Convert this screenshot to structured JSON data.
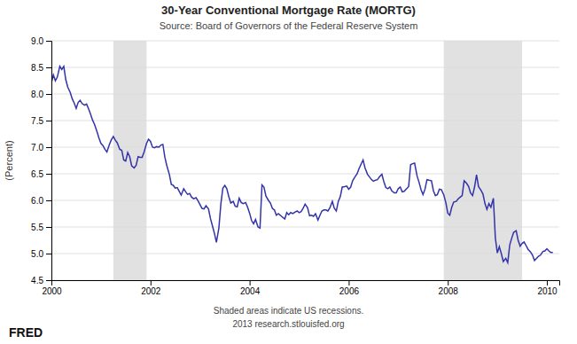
{
  "chart_data": {
    "type": "line",
    "title": "30-Year Conventional Mortgage Rate (MORTG)",
    "subtitle": "Source:  Board of Governors of the Federal Reserve System",
    "ylabel": "(Percent)",
    "annotations": [
      "Shaded areas indicate US recessions.",
      "2013 research.stlouisfed.org",
      "FRED"
    ],
    "color": "#3333aa",
    "grid": true,
    "xlim": [
      2000.0,
      2010.25
    ],
    "xticks": [
      2000,
      2002,
      2004,
      2006,
      2008,
      2010
    ],
    "ylim": [
      4.5,
      9.0
    ],
    "yticks": [
      4.5,
      {
        "value": 5.0,
        "label": "5.0"
      },
      5.5,
      {
        "value": 6.0,
        "label": "6.0"
      },
      6.5,
      {
        "value": 7.0,
        "label": "7.0"
      },
      7.5,
      {
        "value": 8.0,
        "label": "8.0"
      },
      8.5,
      {
        "value": 9.0,
        "label": "9.0"
      }
    ],
    "recession_bands": [
      [
        2001.25,
        2001.92
      ],
      [
        2007.92,
        2009.5
      ]
    ],
    "x": [
      2000.0,
      2000.04,
      2000.08,
      2000.12,
      2000.17,
      2000.21,
      2000.25,
      2000.29,
      2000.33,
      2000.38,
      2000.42,
      2000.46,
      2000.5,
      2000.54,
      2000.58,
      2000.62,
      2000.67,
      2000.71,
      2000.75,
      2000.79,
      2000.83,
      2000.87,
      2000.92,
      2000.96,
      2001.0,
      2001.04,
      2001.08,
      2001.12,
      2001.17,
      2001.21,
      2001.25,
      2001.29,
      2001.33,
      2001.38,
      2001.42,
      2001.46,
      2001.5,
      2001.54,
      2001.58,
      2001.62,
      2001.67,
      2001.71,
      2001.75,
      2001.79,
      2001.83,
      2001.87,
      2001.92,
      2001.96,
      2002.0,
      2002.04,
      2002.08,
      2002.12,
      2002.17,
      2002.21,
      2002.25,
      2002.29,
      2002.33,
      2002.38,
      2002.42,
      2002.46,
      2002.5,
      2002.54,
      2002.58,
      2002.62,
      2002.67,
      2002.71,
      2002.75,
      2002.79,
      2002.83,
      2002.87,
      2002.92,
      2002.96,
      2003.0,
      2003.04,
      2003.08,
      2003.12,
      2003.17,
      2003.21,
      2003.25,
      2003.29,
      2003.33,
      2003.38,
      2003.42,
      2003.46,
      2003.5,
      2003.54,
      2003.58,
      2003.62,
      2003.67,
      2003.71,
      2003.75,
      2003.79,
      2003.83,
      2003.87,
      2003.92,
      2003.96,
      2004.0,
      2004.04,
      2004.08,
      2004.12,
      2004.17,
      2004.21,
      2004.25,
      2004.29,
      2004.33,
      2004.38,
      2004.42,
      2004.46,
      2004.5,
      2004.54,
      2004.58,
      2004.62,
      2004.67,
      2004.71,
      2004.75,
      2004.79,
      2004.83,
      2004.87,
      2004.92,
      2004.96,
      2005.0,
      2005.04,
      2005.08,
      2005.12,
      2005.17,
      2005.21,
      2005.25,
      2005.29,
      2005.33,
      2005.38,
      2005.42,
      2005.46,
      2005.5,
      2005.54,
      2005.58,
      2005.62,
      2005.67,
      2005.71,
      2005.75,
      2005.79,
      2005.83,
      2005.87,
      2005.92,
      2005.96,
      2006.0,
      2006.04,
      2006.08,
      2006.12,
      2006.17,
      2006.21,
      2006.25,
      2006.29,
      2006.33,
      2006.38,
      2006.42,
      2006.46,
      2006.5,
      2006.54,
      2006.58,
      2006.62,
      2006.67,
      2006.71,
      2006.75,
      2006.79,
      2006.83,
      2006.87,
      2006.92,
      2006.96,
      2007.0,
      2007.04,
      2007.08,
      2007.12,
      2007.17,
      2007.21,
      2007.25,
      2007.29,
      2007.33,
      2007.38,
      2007.42,
      2007.46,
      2007.5,
      2007.54,
      2007.58,
      2007.62,
      2007.67,
      2007.71,
      2007.75,
      2007.79,
      2007.83,
      2007.87,
      2007.92,
      2007.96,
      2008.0,
      2008.04,
      2008.08,
      2008.12,
      2008.17,
      2008.21,
      2008.25,
      2008.29,
      2008.33,
      2008.38,
      2008.42,
      2008.46,
      2008.5,
      2008.54,
      2008.58,
      2008.62,
      2008.67,
      2008.71,
      2008.75,
      2008.79,
      2008.83,
      2008.87,
      2008.92,
      2008.96,
      2009.0,
      2009.04,
      2009.08,
      2009.12,
      2009.17,
      2009.21,
      2009.25,
      2009.29,
      2009.33,
      2009.38,
      2009.42,
      2009.46,
      2009.5,
      2009.54,
      2009.58,
      2009.62,
      2009.67,
      2009.71,
      2009.75,
      2009.79,
      2009.83,
      2009.87,
      2009.92,
      2009.96,
      2010.0,
      2010.04,
      2010.08,
      2010.12
    ],
    "values": [
      8.21,
      8.36,
      8.25,
      8.32,
      8.52,
      8.46,
      8.52,
      8.27,
      8.13,
      8.03,
      7.91,
      7.83,
      7.73,
      7.84,
      7.88,
      7.82,
      7.79,
      7.81,
      7.72,
      7.62,
      7.51,
      7.43,
      7.29,
      7.17,
      7.07,
      7.03,
      6.96,
      6.91,
      7.05,
      7.14,
      7.2,
      7.13,
      7.08,
      6.96,
      6.94,
      6.76,
      6.74,
      6.9,
      6.82,
      6.65,
      6.61,
      6.66,
      6.82,
      6.81,
      6.81,
      6.91,
      7.07,
      7.15,
      7.11,
      7.0,
      6.99,
      7.01,
      7.0,
      7.04,
      7.05,
      6.81,
      6.65,
      6.49,
      6.3,
      6.28,
      6.23,
      6.24,
      6.17,
      6.1,
      6.22,
      6.16,
      6.11,
      6.13,
      6.06,
      6.03,
      6.05,
      5.99,
      5.92,
      5.85,
      5.84,
      5.9,
      5.84,
      5.66,
      5.52,
      5.38,
      5.21,
      5.48,
      5.93,
      6.23,
      6.28,
      6.22,
      6.07,
      5.95,
      5.98,
      5.89,
      5.88,
      6.04,
      5.96,
      5.94,
      5.96,
      5.87,
      5.76,
      5.62,
      5.56,
      5.64,
      5.5,
      5.48,
      6.29,
      6.25,
      6.08,
      6.0,
      5.95,
      5.85,
      5.82,
      5.72,
      5.75,
      5.72,
      5.68,
      5.65,
      5.77,
      5.73,
      5.77,
      5.75,
      5.78,
      5.8,
      5.77,
      5.79,
      5.85,
      5.93,
      5.86,
      5.71,
      5.72,
      5.7,
      5.75,
      5.63,
      5.72,
      5.8,
      5.82,
      5.82,
      5.8,
      5.86,
      5.98,
      5.85,
      5.8,
      5.98,
      6.07,
      6.25,
      6.26,
      6.27,
      6.21,
      6.25,
      6.37,
      6.43,
      6.5,
      6.6,
      6.68,
      6.76,
      6.61,
      6.49,
      6.44,
      6.39,
      6.36,
      6.38,
      6.39,
      6.44,
      6.49,
      6.35,
      6.24,
      6.22,
      6.25,
      6.18,
      6.14,
      6.14,
      6.22,
      6.25,
      6.16,
      6.17,
      6.22,
      6.26,
      6.67,
      6.69,
      6.7,
      6.46,
      6.34,
      6.2,
      6.11,
      6.21,
      6.39,
      6.38,
      6.37,
      6.18,
      6.09,
      6.11,
      6.21,
      6.2,
      6.1,
      5.96,
      5.76,
      5.72,
      5.87,
      5.97,
      5.98,
      6.03,
      6.06,
      6.09,
      6.37,
      6.32,
      6.26,
      6.14,
      6.09,
      6.25,
      6.48,
      6.26,
      6.19,
      6.12,
      5.94,
      5.83,
      5.94,
      5.87,
      6.04,
      5.29,
      5.01,
      5.13,
      5.0,
      4.85,
      4.91,
      4.83,
      5.16,
      5.29,
      5.4,
      5.43,
      5.25,
      5.14,
      5.19,
      5.22,
      5.15,
      5.08,
      5.03,
      4.97,
      4.87,
      4.91,
      4.95,
      4.97,
      5.04,
      5.05,
      5.09,
      5.05,
      5.02,
      5.02
    ]
  }
}
